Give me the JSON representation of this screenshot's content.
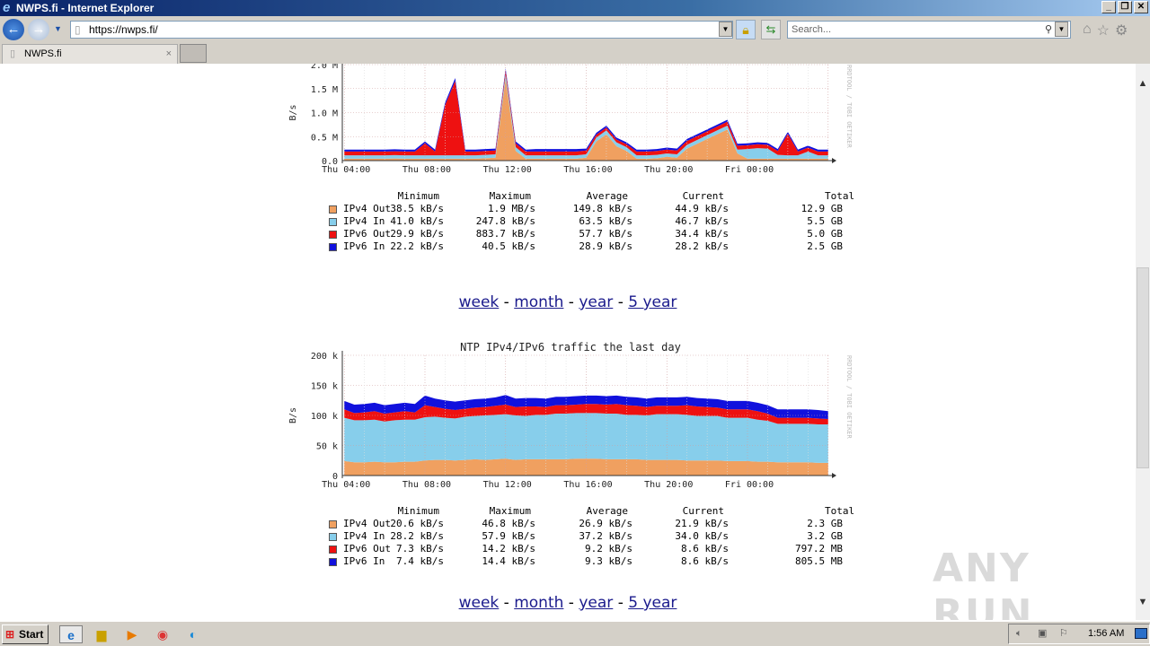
{
  "window": {
    "title": "NWPS.fi - Internet Explorer",
    "min": "_",
    "max": "❐",
    "close": "✕"
  },
  "nav": {
    "url": "https://nwps.fi/",
    "search_placeholder": "Search..."
  },
  "tabs": [
    {
      "label": "NWPS.fi",
      "close": "×"
    }
  ],
  "links": {
    "week": "week",
    "month": "month",
    "year": "year",
    "five_year": "5 year",
    "sep": " - "
  },
  "legend_headers": [
    "Minimum",
    "Maximum",
    "Average",
    "Current",
    "Total"
  ],
  "colors": {
    "ipv4_out": "#f0a060",
    "ipv4_in": "#87ceeb",
    "ipv6_out": "#ee1111",
    "ipv6_in": "#1111dd"
  },
  "chart_data": [
    {
      "type": "area",
      "stacked": true,
      "title": "",
      "ylabel": "B/s",
      "watermark": "RRDTOOL / TOBI OETIKER",
      "ylim": [
        0,
        2000
      ],
      "yticks": [
        {
          "v": 0,
          "label": "0.0"
        },
        {
          "v": 500,
          "label": "0.5 M"
        },
        {
          "v": 1000,
          "label": "1.0 M"
        },
        {
          "v": 1500,
          "label": "1.5 M"
        },
        {
          "v": 2000,
          "label": "2.0 M"
        }
      ],
      "xlim": [
        -0.1,
        24.1
      ],
      "xticks": [
        {
          "v": 0,
          "label": "Thu 04:00"
        },
        {
          "v": 4,
          "label": "Thu 08:00"
        },
        {
          "v": 8,
          "label": "Thu 12:00"
        },
        {
          "v": 12,
          "label": "Thu 16:00"
        },
        {
          "v": 16,
          "label": "Thu 20:00"
        },
        {
          "v": 20,
          "label": "Fri 00:00"
        }
      ],
      "x_hours_step": 0.5,
      "series": [
        {
          "name": "IPv4 Out",
          "key": "ipv4_out",
          "values": [
            40,
            40,
            40,
            40,
            40,
            45,
            40,
            40,
            40,
            40,
            40,
            40,
            40,
            40,
            50,
            60,
            1700,
            200,
            40,
            40,
            40,
            40,
            40,
            40,
            60,
            400,
            550,
            300,
            200,
            40,
            40,
            50,
            80,
            60,
            250,
            350,
            450,
            550,
            650,
            150,
            40,
            40,
            40,
            40,
            40,
            40,
            40,
            40,
            40
          ],
          "stats": [
            "38.5 kB/s",
            "1.9 MB/s",
            "149.8 kB/s",
            "44.9 kB/s",
            "12.9 GB"
          ]
        },
        {
          "name": "IPv4 In",
          "key": "ipv4_in",
          "values": [
            70,
            70,
            70,
            70,
            70,
            70,
            70,
            70,
            70,
            70,
            70,
            70,
            70,
            70,
            70,
            70,
            100,
            80,
            70,
            70,
            70,
            70,
            70,
            70,
            70,
            80,
            80,
            80,
            80,
            70,
            70,
            70,
            70,
            70,
            80,
            80,
            80,
            80,
            80,
            80,
            200,
            220,
            210,
            80,
            70,
            70,
            150,
            70,
            70
          ],
          "stats": [
            "41.0 kB/s",
            "247.8 kB/s",
            "63.5 kB/s",
            "46.7 kB/s",
            "5.5 GB"
          ]
        },
        {
          "name": "IPv6 Out",
          "key": "ipv6_out",
          "values": [
            80,
            80,
            80,
            80,
            80,
            80,
            80,
            80,
            250,
            80,
            1050,
            1550,
            80,
            80,
            80,
            80,
            80,
            80,
            80,
            80,
            80,
            80,
            80,
            80,
            80,
            60,
            60,
            60,
            60,
            80,
            80,
            80,
            80,
            80,
            80,
            80,
            80,
            80,
            80,
            80,
            80,
            80,
            80,
            80,
            450,
            80,
            80,
            80,
            80
          ],
          "stats": [
            "29.9 kB/s",
            "883.7 kB/s",
            "57.7 kB/s",
            "34.4 kB/s",
            "5.0 GB"
          ]
        },
        {
          "name": "IPv6 In",
          "key": "ipv6_in",
          "values": [
            40,
            40,
            40,
            40,
            40,
            40,
            40,
            40,
            40,
            40,
            50,
            60,
            40,
            40,
            40,
            40,
            40,
            40,
            40,
            50,
            50,
            50,
            50,
            50,
            40,
            40,
            40,
            40,
            40,
            40,
            40,
            40,
            40,
            40,
            40,
            40,
            40,
            40,
            40,
            40,
            40,
            40,
            40,
            40,
            40,
            40,
            40,
            40,
            40
          ],
          "stats": [
            "22.2 kB/s",
            "40.5 kB/s",
            "28.9 kB/s",
            "28.2 kB/s",
            "2.5 GB"
          ]
        }
      ]
    },
    {
      "type": "area",
      "stacked": true,
      "title": "NTP IPv4/IPv6 traffic the last day",
      "ylabel": "B/s",
      "watermark": "RRDTOOL / TOBI OETIKER",
      "ylim": [
        0,
        200
      ],
      "yticks": [
        {
          "v": 0,
          "label": "0"
        },
        {
          "v": 50,
          "label": "50 k"
        },
        {
          "v": 100,
          "label": "100 k"
        },
        {
          "v": 150,
          "label": "150 k"
        },
        {
          "v": 200,
          "label": "200 k"
        }
      ],
      "xlim": [
        -0.1,
        24.1
      ],
      "xticks": [
        {
          "v": 0,
          "label": "Thu 04:00"
        },
        {
          "v": 4,
          "label": "Thu 08:00"
        },
        {
          "v": 8,
          "label": "Thu 12:00"
        },
        {
          "v": 12,
          "label": "Thu 16:00"
        },
        {
          "v": 16,
          "label": "Thu 20:00"
        },
        {
          "v": 20,
          "label": "Fri 00:00"
        }
      ],
      "x_hours_step": 0.5,
      "series": [
        {
          "name": "IPv4 Out",
          "key": "ipv4_out",
          "values": [
            24,
            22,
            22,
            23,
            22,
            22,
            23,
            23,
            25,
            26,
            26,
            25,
            26,
            27,
            26,
            27,
            28,
            26,
            27,
            27,
            27,
            27,
            27,
            28,
            28,
            28,
            27,
            27,
            27,
            27,
            26,
            26,
            26,
            26,
            25,
            25,
            25,
            25,
            24,
            24,
            24,
            23,
            23,
            22,
            22,
            22,
            22,
            21,
            21
          ],
          "stats": [
            "20.6 kB/s",
            "46.8 kB/s",
            "26.9 kB/s",
            "21.9 kB/s",
            "2.3 GB"
          ]
        },
        {
          "name": "IPv4 In",
          "key": "ipv4_in",
          "values": [
            72,
            70,
            70,
            70,
            68,
            70,
            70,
            70,
            72,
            72,
            70,
            70,
            72,
            72,
            74,
            74,
            74,
            74,
            72,
            74,
            74,
            76,
            76,
            76,
            76,
            76,
            76,
            76,
            74,
            74,
            74,
            76,
            76,
            76,
            76,
            74,
            74,
            74,
            72,
            72,
            72,
            70,
            68,
            64,
            64,
            64,
            64,
            64,
            64
          ],
          "stats": [
            "28.2 kB/s",
            "57.9 kB/s",
            "37.2 kB/s",
            "34.0 kB/s",
            "3.2 GB"
          ]
        },
        {
          "name": "IPv6 Out",
          "key": "ipv6_out",
          "values": [
            14,
            12,
            13,
            14,
            13,
            13,
            14,
            12,
            20,
            16,
            15,
            14,
            13,
            14,
            14,
            15,
            16,
            14,
            16,
            14,
            13,
            14,
            14,
            14,
            15,
            15,
            15,
            16,
            16,
            15,
            14,
            14,
            14,
            14,
            16,
            16,
            15,
            14,
            14,
            14,
            14,
            14,
            12,
            10,
            10,
            10,
            10,
            10,
            9
          ],
          "stats": [
            "7.3 kB/s",
            "14.2 kB/s",
            "9.2 kB/s",
            "8.6 kB/s",
            "797.2 MB"
          ]
        },
        {
          "name": "IPv6 In",
          "key": "ipv6_in",
          "values": [
            14,
            14,
            14,
            14,
            14,
            14,
            14,
            14,
            16,
            14,
            14,
            14,
            14,
            14,
            14,
            14,
            16,
            14,
            14,
            14,
            14,
            14,
            14,
            14,
            14,
            14,
            14,
            14,
            14,
            14,
            14,
            14,
            14,
            14,
            14,
            14,
            14,
            14,
            14,
            14,
            14,
            14,
            14,
            14,
            14,
            14,
            14,
            14,
            13
          ],
          "stats": [
            "7.4 kB/s",
            "14.4 kB/s",
            "9.3 kB/s",
            "8.6 kB/s",
            "805.5 MB"
          ]
        }
      ]
    }
  ],
  "taskbar": {
    "start": "Start",
    "clock": "1:56 AM"
  },
  "watermark": "ANY RUN"
}
